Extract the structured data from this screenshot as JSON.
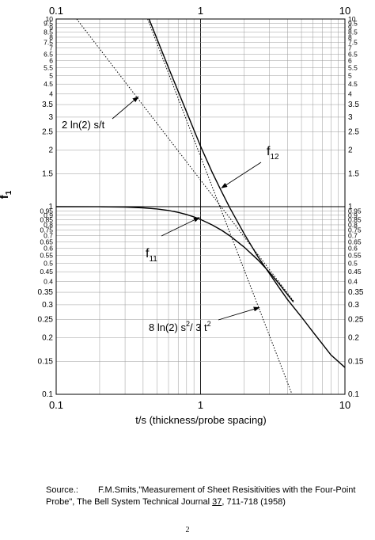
{
  "chart_data": {
    "type": "line",
    "x_scale": "log",
    "y_scale": "log",
    "xlim": [
      0.1,
      10
    ],
    "ylim": [
      0.1,
      10
    ],
    "grid": true,
    "xlabel": "t/s  (thickness/probe spacing)",
    "ylabel": "f",
    "ylabel_sub": "1",
    "x_major_ticks": [
      {
        "value": 0.1,
        "label": "0.1"
      },
      {
        "value": 1,
        "label": "1"
      },
      {
        "value": 10,
        "label": "10"
      }
    ],
    "y_tick_labels": [
      {
        "value": 0.1,
        "label": "0.1"
      },
      {
        "value": 0.15,
        "label": "0.15"
      },
      {
        "value": 0.2,
        "label": "0.2"
      },
      {
        "value": 0.25,
        "label": "0.25"
      },
      {
        "value": 0.3,
        "label": "0.3"
      },
      {
        "value": 0.35,
        "label": "0.35"
      },
      {
        "value": 0.4,
        "label": "0.4"
      },
      {
        "value": 0.45,
        "label": "0.45"
      },
      {
        "value": 0.5,
        "label": "0.5"
      },
      {
        "value": 0.55,
        "label": "0.55"
      },
      {
        "value": 0.6,
        "label": "0.6"
      },
      {
        "value": 0.65,
        "label": "0.65"
      },
      {
        "value": 0.7,
        "label": "0.7"
      },
      {
        "value": 0.75,
        "label": "0.75"
      },
      {
        "value": 0.8,
        "label": "0.8"
      },
      {
        "value": 0.85,
        "label": "0.85"
      },
      {
        "value": 0.9,
        "label": "0.9"
      },
      {
        "value": 0.95,
        "label": "0.95"
      },
      {
        "value": 1,
        "label": "1"
      },
      {
        "value": 1.5,
        "label": "1.5"
      },
      {
        "value": 2,
        "label": "2"
      },
      {
        "value": 2.5,
        "label": "2.5"
      },
      {
        "value": 3,
        "label": "3"
      },
      {
        "value": 3.5,
        "label": "3.5"
      },
      {
        "value": 4,
        "label": "4"
      },
      {
        "value": 4.5,
        "label": "4.5"
      },
      {
        "value": 5,
        "label": "5"
      },
      {
        "value": 5.5,
        "label": "5.5"
      },
      {
        "value": 6,
        "label": "6"
      },
      {
        "value": 6.5,
        "label": "6.5"
      },
      {
        "value": 7,
        "label": "7"
      },
      {
        "value": 7.5,
        "label": "7.5"
      },
      {
        "value": 8,
        "label": "8"
      },
      {
        "value": 8.5,
        "label": "8.5"
      },
      {
        "value": 9,
        "label": "9"
      },
      {
        "value": 9.5,
        "label": "9.5"
      },
      {
        "value": 10,
        "label": "10"
      }
    ],
    "series": [
      {
        "name": "f11",
        "style": "solid",
        "x": [
          0.1,
          0.2,
          0.3,
          0.4,
          0.5,
          0.6,
          0.7,
          0.8,
          0.9,
          1.0,
          1.2,
          1.4,
          1.6,
          2.0,
          2.5,
          3.0,
          3.5,
          4.0,
          4.4
        ],
        "y": [
          1.0,
          0.999,
          0.995,
          0.986,
          0.972,
          0.954,
          0.932,
          0.908,
          0.882,
          0.855,
          0.8,
          0.748,
          0.698,
          0.61,
          0.52,
          0.447,
          0.388,
          0.34,
          0.31
        ]
      },
      {
        "name": "f12",
        "style": "solid",
        "x": [
          0.44,
          0.6,
          0.8,
          1.0,
          1.2,
          1.4,
          1.6,
          2.0,
          2.5,
          3.0,
          3.5,
          4.0,
          5.0,
          6.0,
          7.0,
          8.0,
          10.0
        ],
        "y": [
          10.0,
          5.5,
          3.2,
          2.1,
          1.53,
          1.2,
          0.98,
          0.72,
          0.54,
          0.44,
          0.37,
          0.32,
          0.258,
          0.215,
          0.185,
          0.162,
          0.139
        ]
      },
      {
        "name": "2 ln(2) s/t",
        "style": "dotted",
        "x": [
          0.1386,
          1.386,
          4.4
        ],
        "y": [
          10.0,
          1.0,
          0.315
        ]
      },
      {
        "name": "8 ln(2) s² / 3 t²",
        "style": "dotted",
        "x": [
          0.43,
          1.36,
          4.3
        ],
        "y": [
          10.0,
          1.0,
          0.1
        ]
      }
    ],
    "annotations": [
      {
        "id": "f12",
        "base": "f",
        "sub": "12",
        "arrow_to": [
          1.4,
          1.26
        ]
      },
      {
        "id": "f11",
        "base": "f",
        "sub": "11",
        "arrow_to": [
          0.98,
          0.875
        ]
      },
      {
        "id": "s-over-t",
        "text": "2 ln(2) s/t",
        "arrow_to": [
          0.37,
          3.85
        ]
      },
      {
        "id": "s2-over-t2",
        "text": "8 ln(2) s",
        "sup": "2",
        "text2": "/ 3 t",
        "sup2": "2",
        "arrow_to": [
          2.55,
          0.29
        ]
      }
    ]
  },
  "source": {
    "label": "Source.:",
    "line1": "F.M.Smits,\"Measurement of Sheet Resisitivities with the Four-Point",
    "line2_pre": "Probe\", The Bell System Technical Journal ",
    "volume": "37",
    "line2_post": ", 711-718 (1958)"
  },
  "page_number": "2"
}
